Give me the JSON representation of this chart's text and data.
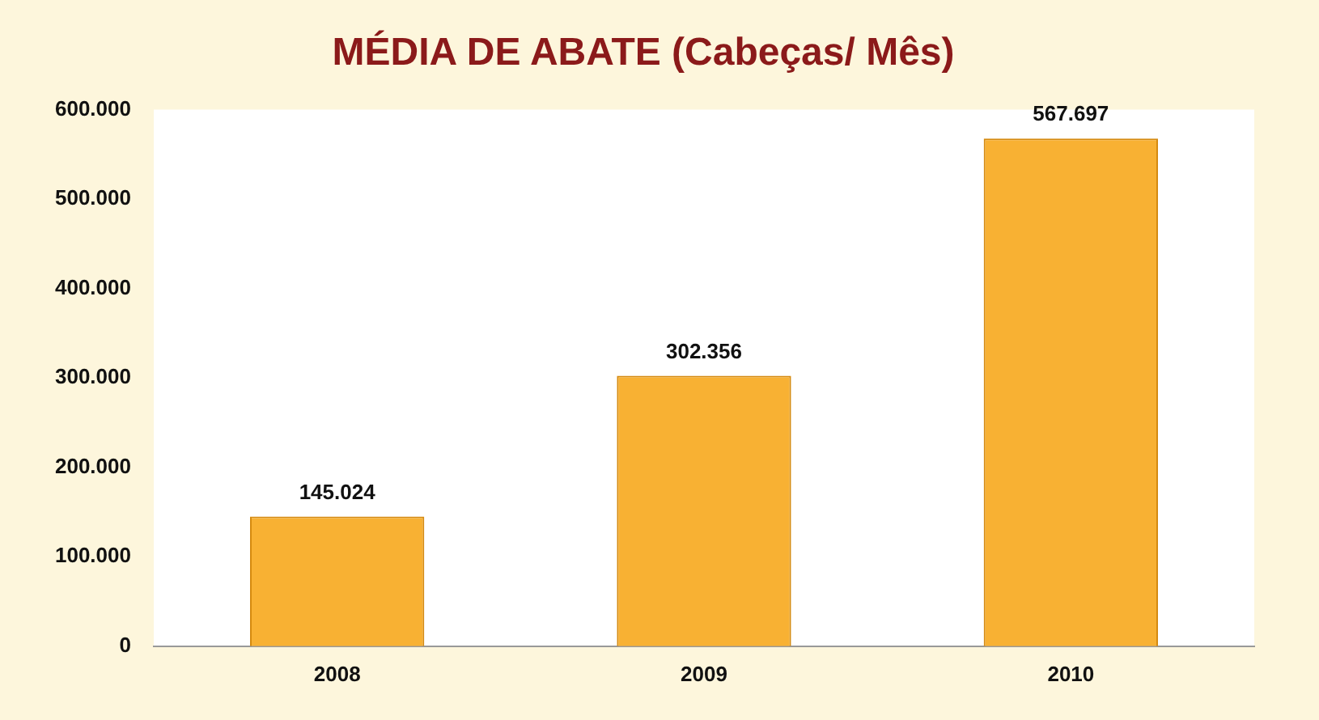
{
  "chart_data": {
    "type": "bar",
    "title": "MÉDIA DE ABATE (Cabeças/ Mês)",
    "categories": [
      "2008",
      "2009",
      "2010"
    ],
    "values": [
      145024,
      302356,
      567697
    ],
    "value_labels": [
      "145.024",
      "302.356",
      "567.697"
    ],
    "color": "#f8b133",
    "ylim": [
      0,
      600000
    ],
    "yticks": [
      {
        "value": 0,
        "label": "0"
      },
      {
        "value": 100000,
        "label": "100.000"
      },
      {
        "value": 200000,
        "label": "200.000"
      },
      {
        "value": 300000,
        "label": "300.000"
      },
      {
        "value": 400000,
        "label": "400.000"
      },
      {
        "value": 500000,
        "label": "500.000"
      },
      {
        "value": 600000,
        "label": "600.000"
      }
    ],
    "grid": false,
    "legend": false
  }
}
